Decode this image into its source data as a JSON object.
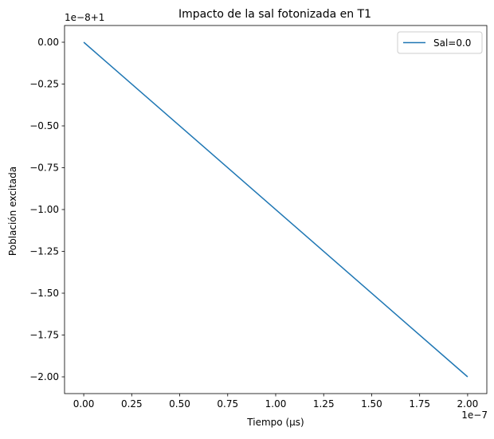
{
  "chart_data": {
    "type": "line",
    "title": "Impacto de la sal fotonizada en T1",
    "xlabel": "Tiempo (µs)",
    "ylabel": "Población excitada",
    "x_offset_text": "1e−7",
    "y_offset_text": "1e−8+1",
    "xlim": [
      -0.1,
      2.1
    ],
    "ylim": [
      -2.1,
      0.1
    ],
    "x_ticks": [
      0.0,
      0.25,
      0.5,
      0.75,
      1.0,
      1.25,
      1.5,
      1.75,
      2.0
    ],
    "x_tick_labels": [
      "0.00",
      "0.25",
      "0.50",
      "0.75",
      "1.00",
      "1.25",
      "1.50",
      "1.75",
      "2.00"
    ],
    "y_ticks": [
      0.0,
      -0.25,
      -0.5,
      -0.75,
      -1.0,
      -1.25,
      -1.5,
      -1.75,
      -2.0
    ],
    "y_tick_labels": [
      "0.00",
      "−0.25",
      "−0.50",
      "−0.75",
      "−1.00",
      "−1.25",
      "−1.50",
      "−1.75",
      "−2.00"
    ],
    "series": [
      {
        "name": "Sal=0.0",
        "color": "#1f77b4",
        "x": [
          0.0,
          2.0
        ],
        "y": [
          0.0,
          -2.0
        ]
      }
    ],
    "legend_position": "top-right",
    "grid": false
  }
}
